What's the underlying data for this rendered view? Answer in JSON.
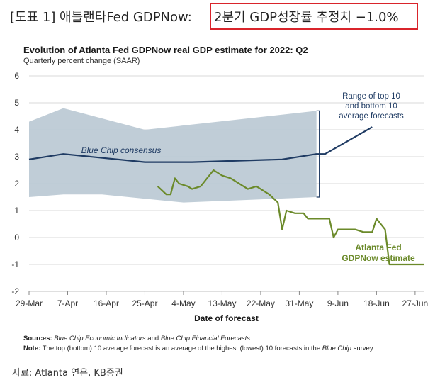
{
  "header": {
    "prefix": "[도표 1] 애틀랜타Fed GDPNow: ",
    "highlight": "2분기 GDP성장률 추정치 −1.0%",
    "highlight_color": "#d9242b"
  },
  "footer": {
    "sources_label": "Sources:",
    "sources_src1": "Blue Chip Economic Indicators",
    "sources_and": " and ",
    "sources_src2": "Blue Chip Financial Forecasts",
    "note_label": "Note:",
    "note_text": "The top (bottom) 10 average forecast is an average of the highest (lowest) 10 forecasts in the",
    "note_italic": "Blue Chip",
    "note_end": "survey.",
    "source_line": "자료: Atlanta 연은, KB증권"
  },
  "chart_data": {
    "type": "line",
    "title": "Evolution of Atlanta Fed GDPNow real GDP estimate for 2022: Q2",
    "subtitle": "Quarterly percent change (SAAR)",
    "xlabel": "Date of forecast",
    "ylabel": "",
    "ylim": [
      -2,
      6
    ],
    "xlim": [
      0,
      92
    ],
    "y_ticks": [
      -2,
      -1,
      0,
      1,
      2,
      3,
      4,
      5,
      6
    ],
    "x_ticks": [
      {
        "x": 0,
        "label": "29-Mar"
      },
      {
        "x": 9,
        "label": "7-Apr"
      },
      {
        "x": 18,
        "label": "16-Apr"
      },
      {
        "x": 27,
        "label": "25-Apr"
      },
      {
        "x": 36,
        "label": "4-May"
      },
      {
        "x": 45,
        "label": "13-May"
      },
      {
        "x": 54,
        "label": "22-May"
      },
      {
        "x": 63,
        "label": "31-May"
      },
      {
        "x": 72,
        "label": "9-Jun"
      },
      {
        "x": 81,
        "label": "18-Jun"
      },
      {
        "x": 90,
        "label": "27-Jun"
      }
    ],
    "grid": true,
    "band": {
      "name": "Range of top 10 and bottom 10 average forecasts",
      "color": "#b9c8d3",
      "x": [
        0,
        8,
        27,
        67
      ],
      "upper": [
        4.3,
        4.8,
        4.0,
        4.7
      ],
      "lower": [
        1.5,
        1.6,
        1.6,
        1.5
      ],
      "lower_x": [
        0,
        8,
        17,
        36,
        67
      ],
      "lower_vals": [
        1.5,
        1.6,
        1.6,
        1.3,
        1.5
      ]
    },
    "series": [
      {
        "name": "Blue Chip consensus",
        "color": "#1f3b63",
        "x": [
          0,
          8,
          27,
          38,
          59,
          67,
          69,
          80
        ],
        "values": [
          2.9,
          3.1,
          2.8,
          2.8,
          2.9,
          3.1,
          3.1,
          4.1
        ]
      },
      {
        "name": "Atlanta Fed GDPNow estimate",
        "color": "#6b8a2a",
        "x": [
          30,
          32,
          33,
          34,
          35,
          37,
          38,
          40,
          42,
          43,
          45,
          47,
          48,
          51,
          53,
          54,
          55,
          56,
          58,
          59,
          60,
          62,
          63,
          64,
          65,
          67,
          68,
          70,
          71,
          72,
          74,
          75,
          76,
          78,
          79,
          80,
          81,
          83,
          84,
          86,
          87,
          88,
          89,
          90,
          91,
          92
        ],
        "values": [
          1.9,
          1.6,
          1.6,
          2.2,
          2.0,
          1.9,
          1.8,
          1.9,
          2.3,
          2.5,
          2.3,
          2.2,
          2.1,
          1.8,
          1.9,
          1.8,
          1.7,
          1.6,
          1.3,
          0.3,
          1.0,
          0.9,
          0.9,
          0.9,
          0.7,
          0.7,
          0.7,
          0.7,
          0.0,
          0.3,
          0.3,
          0.3,
          0.3,
          0.2,
          0.2,
          0.2,
          0.7,
          0.3,
          -1.0,
          -1.0,
          -1.0,
          -1.0,
          -1.0,
          -1.0,
          -1.0,
          -1.0
        ]
      }
    ],
    "annotations": {
      "range_label": [
        "Range of top 10",
        "and bottom 10",
        "average forecasts"
      ],
      "bluechip_label": "Blue Chip consensus",
      "gdpnow_label": [
        "Atlanta Fed",
        "GDPNow estimate"
      ]
    }
  }
}
